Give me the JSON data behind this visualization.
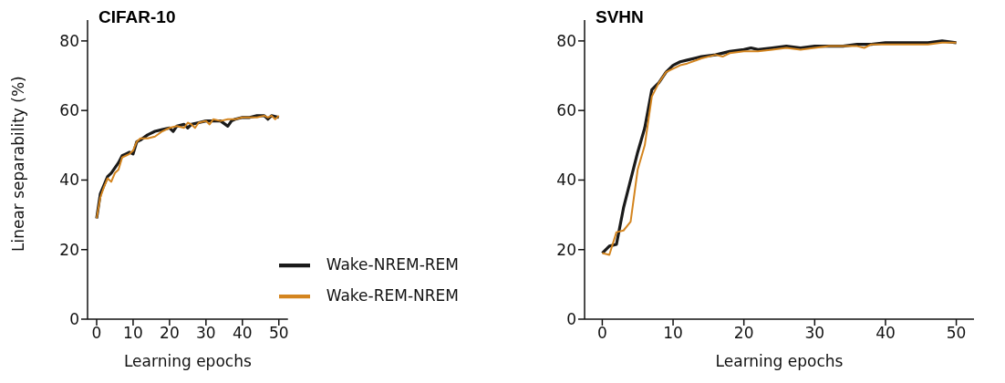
{
  "chart_data": [
    {
      "type": "line",
      "title": "CIFAR-10",
      "xlabel": "Learning epochs",
      "ylabel": "Linear separability (%)",
      "xlim": [
        -2.5,
        52.5
      ],
      "xticks": [
        0,
        10,
        20,
        30,
        40,
        50
      ],
      "ylim": [
        0,
        86
      ],
      "yticks": [
        0,
        20,
        40,
        60,
        80
      ],
      "grid": false,
      "legend": "bottom right",
      "marker": "none",
      "line_style": "solid",
      "series": [
        {
          "name": "Wake-NREM-REM",
          "color": "#1a1a1a",
          "x": [
            0,
            1,
            2,
            3,
            4,
            5,
            6,
            7,
            8,
            9,
            10,
            11,
            12,
            14,
            16,
            18,
            20,
            21,
            22,
            24,
            25,
            26,
            28,
            30,
            32,
            34,
            36,
            37,
            38,
            40,
            42,
            44,
            46,
            47,
            48,
            50
          ],
          "values": [
            29,
            36,
            38.5,
            41,
            42,
            43.5,
            45,
            47,
            47.5,
            48,
            47.5,
            51,
            51.5,
            53,
            54,
            54.5,
            55,
            54,
            55.5,
            56,
            55,
            56,
            56.5,
            57,
            57,
            57,
            55.5,
            57,
            57.5,
            58,
            58,
            58.5,
            58.5,
            57.5,
            58.5,
            58
          ]
        },
        {
          "name": "Wake-REM-NREM",
          "color": "#d4851f",
          "x": [
            0,
            1,
            2,
            3,
            4,
            5,
            6,
            7,
            8,
            9,
            10,
            11,
            12,
            14,
            16,
            18,
            20,
            22,
            24,
            25,
            26,
            27,
            28,
            30,
            31,
            32,
            34,
            36,
            38,
            40,
            42,
            44,
            46,
            47,
            48,
            49,
            50
          ],
          "values": [
            29,
            35,
            38,
            40.5,
            39.5,
            42,
            43,
            46.5,
            47,
            47.5,
            48.5,
            51,
            52,
            52,
            52.5,
            54,
            55,
            55.5,
            55,
            56.5,
            56,
            55,
            56.5,
            57,
            56,
            57.5,
            57,
            57.5,
            57.5,
            58,
            58,
            58,
            58.5,
            58,
            58.5,
            57.5,
            58.5
          ]
        }
      ]
    },
    {
      "type": "line",
      "title": "SVHN",
      "xlabel": "Learning epochs",
      "xlim": [
        -2.5,
        52.5
      ],
      "xticks": [
        0,
        10,
        20,
        30,
        40,
        50
      ],
      "ylim": [
        0,
        86
      ],
      "yticks": [
        0,
        20,
        40,
        60,
        80
      ],
      "grid": false,
      "legend": false,
      "marker": "none",
      "line_style": "solid",
      "series": [
        {
          "color": "#1a1a1a",
          "x": [
            0,
            1,
            2,
            3,
            4,
            5,
            6,
            7,
            8,
            9,
            10,
            11,
            12,
            14,
            16,
            18,
            20,
            21,
            22,
            24,
            26,
            28,
            30,
            32,
            34,
            36,
            38,
            40,
            42,
            44,
            46,
            48,
            50
          ],
          "values": [
            19,
            21,
            21.5,
            32,
            40,
            48,
            55,
            66,
            68,
            71,
            73,
            74,
            74.5,
            75.5,
            76,
            77,
            77.5,
            78,
            77.5,
            78,
            78.5,
            78,
            78.5,
            78.5,
            78.5,
            79,
            79,
            79.5,
            79.5,
            79.5,
            79.5,
            80,
            79.5
          ]
        },
        {
          "color": "#d4851f",
          "x": [
            0,
            1,
            2,
            3,
            4,
            5,
            6,
            7,
            8,
            9,
            10,
            11,
            12,
            14,
            16,
            17,
            18,
            20,
            22,
            24,
            26,
            28,
            30,
            32,
            34,
            36,
            37,
            38,
            40,
            42,
            44,
            46,
            48,
            50
          ],
          "values": [
            19,
            18.5,
            25,
            25.5,
            28,
            43,
            50,
            64,
            68,
            71,
            72,
            73,
            73.5,
            75,
            76,
            75.5,
            76.5,
            77,
            77,
            77.5,
            78,
            77.5,
            78,
            78.5,
            78.5,
            78.5,
            78,
            79,
            79,
            79,
            79,
            79,
            79.5,
            79.5
          ]
        }
      ]
    }
  ]
}
